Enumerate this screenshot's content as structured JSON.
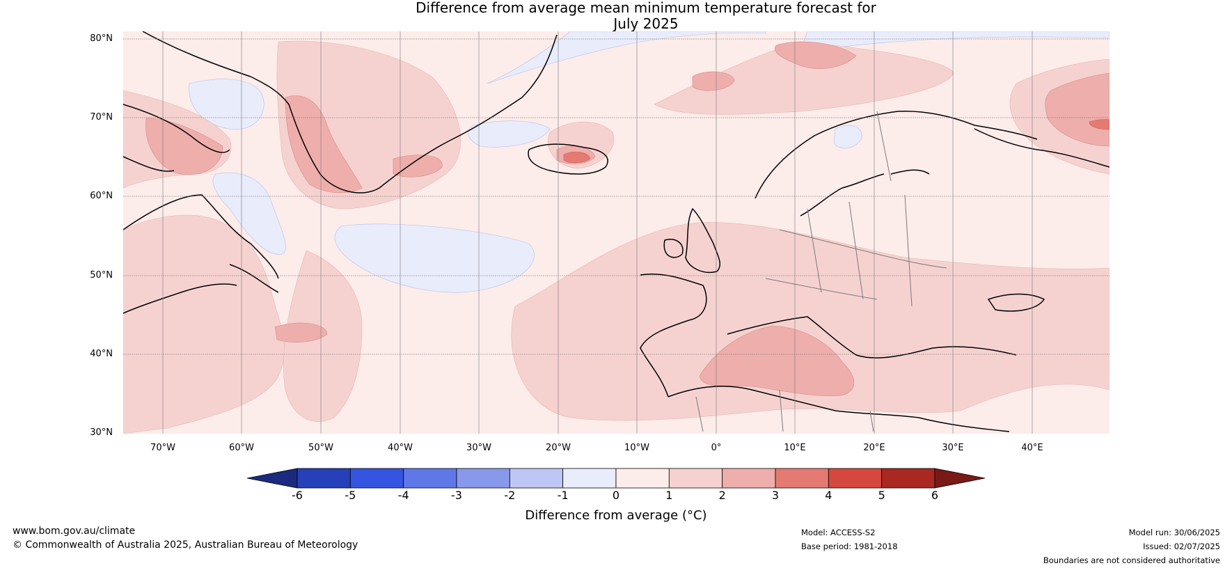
{
  "title_line1": "Difference from average mean minimum temperature forecast for",
  "title_line2": "July 2025",
  "lat_labels": [
    "80°N",
    "70°N",
    "60°N",
    "50°N",
    "40°N",
    "30°N"
  ],
  "lon_labels": [
    "70°W",
    "60°W",
    "50°W",
    "40°W",
    "30°W",
    "20°W",
    "10°W",
    "0°",
    "10°E",
    "20°E",
    "30°E",
    "40°E"
  ],
  "colorbar": {
    "ticks": [
      "-6",
      "-5",
      "-4",
      "-3",
      "-2",
      "-1",
      "0",
      "1",
      "2",
      "3",
      "4",
      "5",
      "6"
    ],
    "label": "Difference from average (°C)",
    "colors": [
      "#1b2a80",
      "#2540b8",
      "#3555e0",
      "#5f78e8",
      "#8899ec",
      "#bdc6f4",
      "#e8ecfb",
      "#fcecea",
      "#f5d2d0",
      "#eeaeab",
      "#e57a72",
      "#d6483e",
      "#a92822",
      "#7a1a17"
    ]
  },
  "footer": {
    "website": "www.bom.gov.au/climate",
    "copyright": "© Commonwealth of Australia 2025, Australian Bureau of Meteorology",
    "model": "Model: ACCESS-S2",
    "base_period": "Base period: 1981-2018",
    "model_run": "Model run: 30/06/2025",
    "issued": "Issued: 02/07/2025",
    "disclaimer": "Boundaries are not considered authoritative"
  }
}
